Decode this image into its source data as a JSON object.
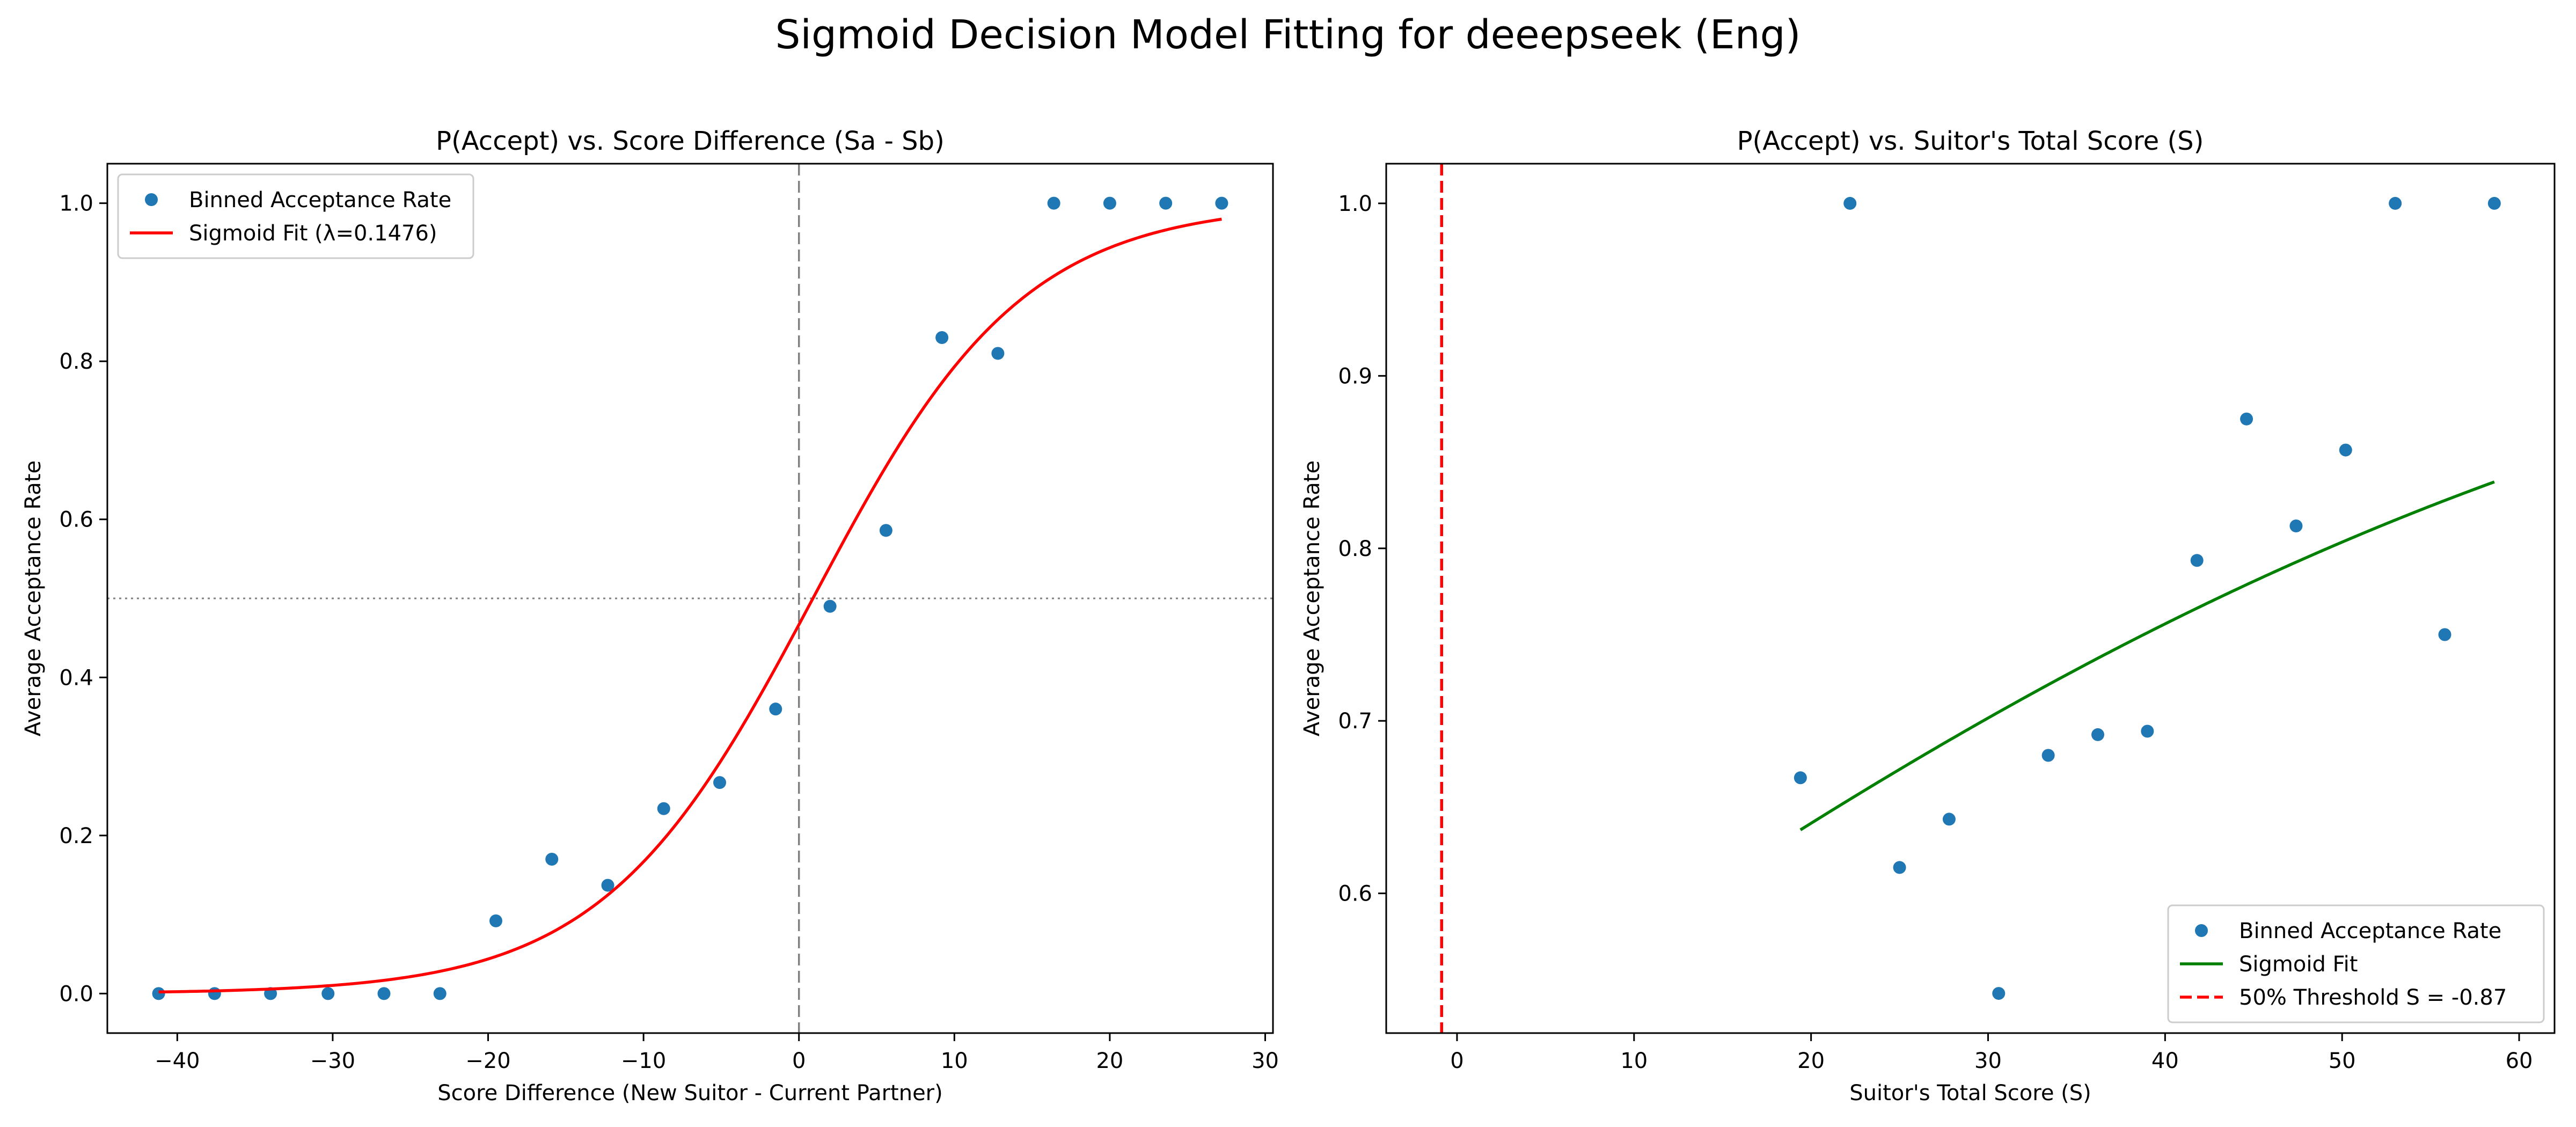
{
  "suptitle": "Sigmoid Decision Model Fitting for deeepseek (Eng)",
  "chart_data": [
    {
      "type": "scatter",
      "title": "P(Accept) vs. Score Difference (Sa - Sb)",
      "xlabel": "Score Difference (New Suitor - Current Partner)",
      "ylabel": "Average Acceptance Rate",
      "xlim": [
        -44.5,
        30.5
      ],
      "ylim": [
        -0.05,
        1.05
      ],
      "xticks": [
        -40,
        -30,
        -20,
        -10,
        0,
        10,
        20,
        30
      ],
      "yticks": [
        0.0,
        0.2,
        0.4,
        0.6,
        0.8,
        1.0
      ],
      "xtick_labels": [
        "−40",
        "−30",
        "−20",
        "−10",
        "0",
        "10",
        "20",
        "30"
      ],
      "ytick_labels": [
        "0.0",
        "0.2",
        "0.4",
        "0.6",
        "0.8",
        "1.0"
      ],
      "grid": false,
      "legend_position": "upper-left",
      "series": [
        {
          "name": "Binned Acceptance Rate",
          "kind": "scatter",
          "color": "#1f77b4",
          "x": [
            -41.2,
            -37.6,
            -34.0,
            -30.3,
            -26.7,
            -23.1,
            -19.5,
            -15.9,
            -12.3,
            -8.7,
            -5.1,
            -1.5,
            2.0,
            5.6,
            9.2,
            12.8,
            16.4,
            20.0,
            23.6,
            27.2
          ],
          "y": [
            0.0,
            0.0,
            0.0,
            0.0,
            0.0,
            0.0,
            0.092,
            0.17,
            0.137,
            0.234,
            0.267,
            0.36,
            0.49,
            0.586,
            0.83,
            0.81,
            1.0,
            1.0,
            1.0,
            1.0
          ]
        },
        {
          "name": "Sigmoid Fit (λ=0.1476)",
          "kind": "line",
          "color": "#ff0000",
          "function": "sigmoid",
          "lambda": 0.1476,
          "x0": 0.9,
          "x_range": [
            -41.2,
            27.2
          ]
        }
      ],
      "reference_lines": [
        {
          "orientation": "vertical",
          "value": 0,
          "style": "dashed",
          "color": "#808080"
        },
        {
          "orientation": "horizontal",
          "value": 0.5,
          "style": "dotted",
          "color": "#808080"
        }
      ]
    },
    {
      "type": "scatter",
      "title": "P(Accept) vs. Suitor's Total Score (S)",
      "xlabel": "Suitor's Total Score (S)",
      "ylabel": "Average Acceptance Rate",
      "xlim": [
        -4.0,
        62.0
      ],
      "ylim": [
        0.519,
        1.023
      ],
      "xticks": [
        0,
        10,
        20,
        30,
        40,
        50,
        60
      ],
      "yticks": [
        0.6,
        0.7,
        0.8,
        0.9,
        1.0
      ],
      "xtick_labels": [
        "0",
        "10",
        "20",
        "30",
        "40",
        "50",
        "60"
      ],
      "ytick_labels": [
        "0.6",
        "0.7",
        "0.8",
        "0.9",
        "1.0"
      ],
      "grid": false,
      "legend_position": "lower-right",
      "series": [
        {
          "name": "Binned Acceptance Rate",
          "kind": "scatter",
          "color": "#1f77b4",
          "x": [
            19.4,
            22.2,
            25.0,
            27.8,
            30.6,
            33.4,
            36.2,
            39.0,
            41.8,
            44.6,
            47.4,
            50.2,
            53.0,
            55.8,
            58.6
          ],
          "y": [
            0.667,
            1.0,
            0.615,
            0.643,
            0.542,
            0.68,
            0.692,
            0.694,
            0.793,
            0.875,
            0.813,
            0.857,
            1.0,
            0.75,
            1.0
          ]
        },
        {
          "name": "Sigmoid Fit",
          "kind": "line",
          "color": "#008000",
          "function": "sigmoid",
          "lambda": 0.0277,
          "x0": -0.87,
          "x_range": [
            19.4,
            58.6
          ]
        }
      ],
      "reference_lines": [
        {
          "orientation": "vertical",
          "value": -0.87,
          "style": "dashed",
          "color": "#ff0000",
          "name": "50% Threshold S = -0.87"
        }
      ]
    }
  ]
}
